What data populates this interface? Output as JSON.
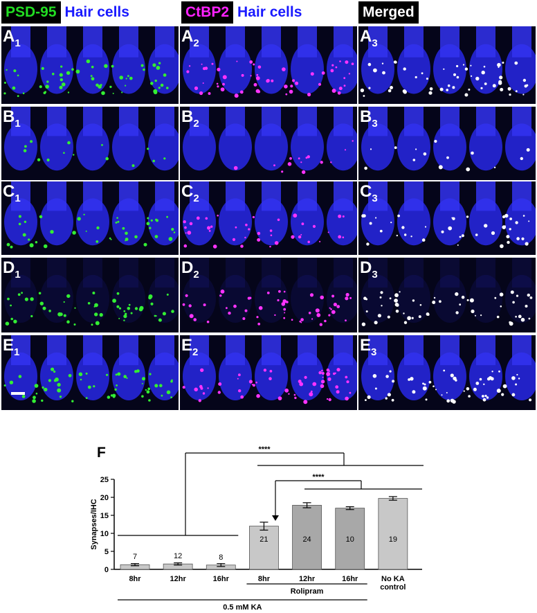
{
  "headers": {
    "col1_tag": "PSD-95",
    "col1_rest": "Hair cells",
    "col2_tag": "CtBP2",
    "col2_rest": "Hair cells",
    "col3_tag": "Merged",
    "tag_colors": [
      "#22dd22",
      "#ff22ff",
      "#ffffff"
    ]
  },
  "panels": [
    {
      "row": "A",
      "label": "A",
      "subs": [
        "1",
        "2",
        "3"
      ]
    },
    {
      "row": "B",
      "label": "B",
      "subs": [
        "1",
        "2",
        "3"
      ]
    },
    {
      "row": "C",
      "label": "C",
      "subs": [
        "1",
        "2",
        "3"
      ]
    },
    {
      "row": "D",
      "label": "D",
      "subs": [
        "1",
        "2",
        "3"
      ]
    },
    {
      "row": "E",
      "label": "E",
      "subs": [
        "1",
        "2",
        "3"
      ]
    }
  ],
  "panel_letter_F": "F",
  "chart_data": {
    "type": "bar",
    "ylabel": "Synapses/IHC",
    "ylim": [
      0,
      25
    ],
    "yticks": [
      0,
      5,
      10,
      15,
      20,
      25
    ],
    "categories": [
      "8hr",
      "12hr",
      "16hr",
      "8hr",
      "12hr",
      "16hr",
      "No KA\ncontrol"
    ],
    "values": [
      1.3,
      1.5,
      1.2,
      12.0,
      17.8,
      17.0,
      19.7
    ],
    "errors": [
      0.3,
      0.3,
      0.4,
      1.1,
      0.7,
      0.4,
      0.5
    ],
    "n_labels": [
      "7",
      "12",
      "8",
      "21",
      "24",
      "10",
      "19"
    ],
    "bar_colors": [
      "#c8c8c8",
      "#c8c8c8",
      "#c8c8c8",
      "#c8c8c8",
      "#a8a8a8",
      "#a8a8a8",
      "#c8c8c8"
    ],
    "group_labels": {
      "rolipram": "Rolipram",
      "ka": "0.5 mM KA"
    },
    "significance": [
      "****",
      "****"
    ]
  }
}
